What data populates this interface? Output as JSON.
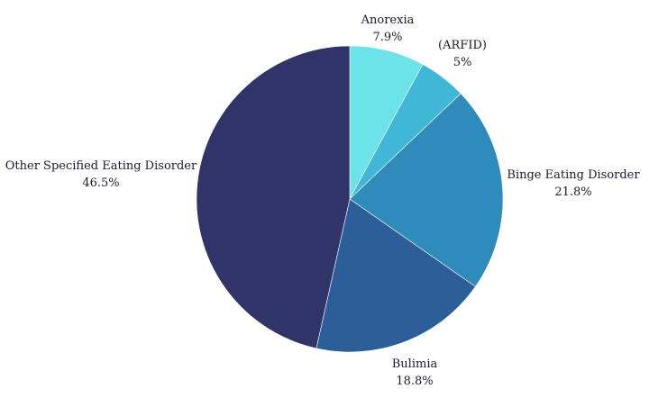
{
  "chart_data": {
    "type": "pie",
    "title": "",
    "slices": [
      {
        "label": "Anorexia",
        "value": 7.9,
        "value_label": "7.9%",
        "color": "#6be3e8"
      },
      {
        "label": "(ARFID)",
        "value": 5.0,
        "value_label": "5%",
        "color": "#40b7d6"
      },
      {
        "label": "Binge Eating Disorder",
        "value": 21.8,
        "value_label": "21.8%",
        "color": "#2e8bbb"
      },
      {
        "label": "Bulimia",
        "value": 18.8,
        "value_label": "18.8%",
        "color": "#2c5f9a"
      },
      {
        "label": "Other Specified Eating Disorder",
        "value": 46.5,
        "value_label": "46.5%",
        "color": "#303468"
      }
    ],
    "start_angle": "12 o'clock",
    "direction": "clockwise",
    "legend": "none"
  }
}
